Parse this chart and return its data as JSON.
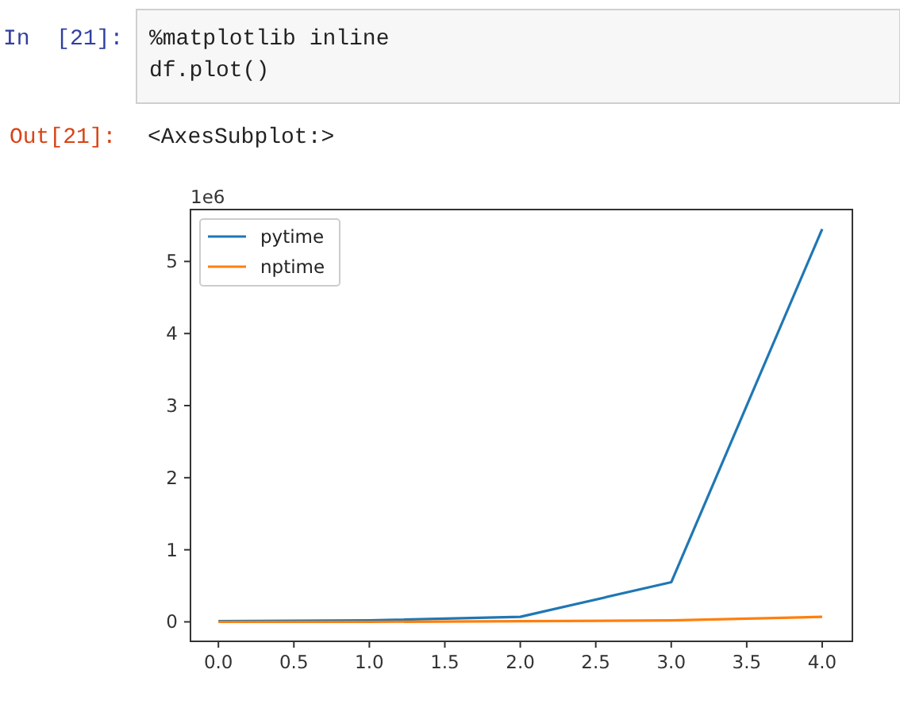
{
  "chart_data": {
    "type": "line",
    "x": [
      0,
      1,
      2,
      3,
      4
    ],
    "series": [
      {
        "name": "pytime",
        "color": "#1f77b4",
        "values": [
          0.01,
          0.02,
          0.07,
          0.55,
          5.45
        ]
      },
      {
        "name": "nptime",
        "color": "#ff7f0e",
        "values": [
          0,
          0,
          0.01,
          0.02,
          0.07
        ]
      }
    ],
    "xlim": [
      -0.185,
      4.2
    ],
    "xticks": [
      {
        "value": 0,
        "label": "0.0"
      },
      {
        "value": 0.5,
        "label": "0.5"
      },
      {
        "value": 1,
        "label": "1.0"
      },
      {
        "value": 1.5,
        "label": "1.5"
      },
      {
        "value": 2,
        "label": "2.0"
      },
      {
        "value": 2.5,
        "label": "2.5"
      },
      {
        "value": 3,
        "label": "3.0"
      },
      {
        "value": 3.5,
        "label": "3.5"
      },
      {
        "value": 4,
        "label": "4.0"
      }
    ],
    "ylim": [
      -0.27,
      5.72
    ],
    "yticks": [
      0,
      1,
      2,
      3,
      4,
      5
    ],
    "grid": false,
    "legend": "top left",
    "line_style": "solid",
    "annotations": [
      "In  [21]:",
      "%matplotlib inline\ndf.plot()",
      "Out[21]:",
      "<AxesSubplot:>",
      "1e6"
    ]
  }
}
